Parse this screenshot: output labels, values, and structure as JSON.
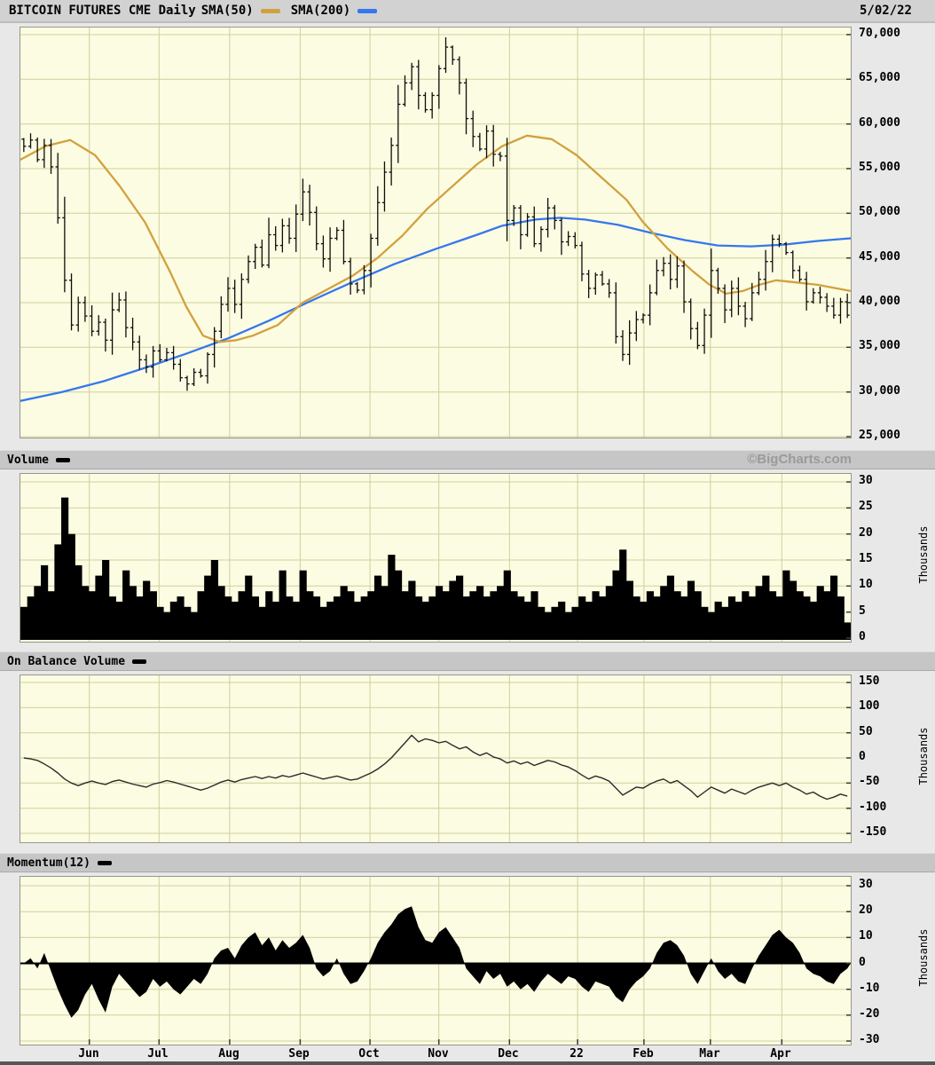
{
  "titlebar": {
    "title": "BITCOIN FUTURES CME Daily",
    "sma50_label": "SMA(50)",
    "sma200_label": "SMA(200)",
    "date": "5/02/22"
  },
  "sections": {
    "volume_label": "Volume",
    "obv_label": "On Balance Volume",
    "momentum_label": "Momentum(12)",
    "watermark": "©BigCharts.com"
  },
  "colors": {
    "sma50": "#d1a13f",
    "sma200": "#3577ee",
    "bars": "#0d0d0d",
    "plot_bg": "#fcfce2",
    "grid": "#cfcf9e",
    "titlebar_bg": "#d2d2d2",
    "header_bg": "#c6c6c6",
    "page_bg": "#e8e8e8",
    "watermark_text": "#9a9a9a"
  },
  "axes": {
    "months": {
      "labels": [
        "Jun",
        "Jul",
        "Aug",
        "Sep",
        "Oct",
        "Nov",
        "Dec",
        "22",
        "Feb",
        "Mar",
        "Apr"
      ],
      "fracs": [
        0.083,
        0.167,
        0.252,
        0.337,
        0.421,
        0.504,
        0.589,
        0.671,
        0.751,
        0.831,
        0.917
      ]
    },
    "price_ticks": {
      "values": [
        70000,
        65000,
        60000,
        55000,
        50000,
        45000,
        40000,
        35000,
        30000,
        25000
      ],
      "labels": [
        "70,000",
        "65,000",
        "60,000",
        "55,000",
        "50,000",
        "45,000",
        "40,000",
        "35,000",
        "30,000",
        "25,000"
      ]
    },
    "volume_ticks": [
      30,
      25,
      20,
      15,
      10,
      5,
      0
    ],
    "obv_ticks": [
      150,
      100,
      50,
      0,
      -50,
      -100,
      -150
    ],
    "momentum_ticks": [
      30,
      20,
      10,
      0,
      -10,
      -20,
      -30
    ],
    "thousands_label": "Thousands"
  },
  "chart_data": [
    {
      "type": "bar",
      "subtype": "ohlc-daily",
      "title": "BITCOIN FUTURES CME Daily",
      "legend": [
        "SMA(50)",
        "SMA(200)"
      ],
      "ylim": [
        25000,
        70000
      ],
      "grid": true,
      "close_thousands": [
        57.5,
        58.2,
        56.0,
        57.6,
        55.2,
        49.5,
        42.5,
        37.5,
        40.0,
        38.5,
        36.8,
        37.8,
        35.8,
        39.2,
        40.3,
        37.2,
        35.6,
        33.6,
        32.8,
        34.6,
        33.6,
        34.4,
        33.1,
        31.6,
        30.9,
        32.2,
        31.8,
        34.2,
        36.8,
        39.8,
        41.6,
        39.8,
        42.6,
        44.6,
        46.2,
        44.2,
        47.6,
        46.4,
        48.6,
        47.2,
        49.9,
        52.4,
        50.1,
        46.6,
        44.9,
        47.2,
        48.1,
        44.6,
        42.1,
        41.4,
        43.6,
        47.2,
        51.2,
        54.6,
        57.6,
        62.2,
        64.6,
        66.4,
        63.2,
        61.6,
        63.2,
        66.2,
        68.6,
        67.2,
        64.6,
        60.6,
        58.6,
        57.2,
        59.2,
        56.6,
        56.4,
        49.2,
        50.6,
        47.6,
        49.6,
        46.6,
        48.2,
        50.6,
        49.2,
        46.8,
        47.4,
        46.4,
        43.2,
        41.6,
        43.1,
        42.1,
        41.1,
        36.2,
        34.2,
        36.6,
        38.1,
        38.6,
        41.1,
        43.6,
        44.4,
        42.6,
        44.1,
        40.1,
        37.1,
        35.2,
        38.6,
        43.6,
        41.6,
        39.2,
        41.6,
        39.6,
        38.2,
        41.1,
        42.6,
        44.6,
        47.1,
        46.6,
        45.6,
        43.6,
        42.6,
        40.1,
        41.1,
        40.6,
        39.6,
        38.6,
        40.1,
        38.6
      ],
      "sma50_anchors": [
        [
          0,
          56.0
        ],
        [
          0.03,
          57.5
        ],
        [
          0.06,
          58.2
        ],
        [
          0.09,
          56.5
        ],
        [
          0.12,
          53.0
        ],
        [
          0.15,
          49.0
        ],
        [
          0.18,
          43.5
        ],
        [
          0.2,
          39.5
        ],
        [
          0.22,
          36.3
        ],
        [
          0.24,
          35.6
        ],
        [
          0.26,
          35.8
        ],
        [
          0.28,
          36.3
        ],
        [
          0.31,
          37.5
        ],
        [
          0.34,
          40.0
        ],
        [
          0.37,
          41.5
        ],
        [
          0.4,
          43.0
        ],
        [
          0.43,
          45.0
        ],
        [
          0.46,
          47.5
        ],
        [
          0.49,
          50.5
        ],
        [
          0.52,
          53.0
        ],
        [
          0.55,
          55.5
        ],
        [
          0.58,
          57.5
        ],
        [
          0.61,
          58.7
        ],
        [
          0.64,
          58.3
        ],
        [
          0.67,
          56.5
        ],
        [
          0.7,
          54.0
        ],
        [
          0.73,
          51.5
        ],
        [
          0.75,
          49.0
        ],
        [
          0.78,
          46.0
        ],
        [
          0.81,
          43.5
        ],
        [
          0.83,
          42.0
        ],
        [
          0.85,
          41.0
        ],
        [
          0.87,
          41.3
        ],
        [
          0.89,
          42.0
        ],
        [
          0.91,
          42.5
        ],
        [
          0.93,
          42.3
        ],
        [
          0.96,
          42.0
        ],
        [
          1.0,
          41.3
        ]
      ],
      "sma200_anchors": [
        [
          0,
          29.0
        ],
        [
          0.05,
          30.0
        ],
        [
          0.1,
          31.2
        ],
        [
          0.15,
          32.7
        ],
        [
          0.2,
          34.3
        ],
        [
          0.25,
          36.0
        ],
        [
          0.3,
          38.0
        ],
        [
          0.35,
          40.2
        ],
        [
          0.4,
          42.3
        ],
        [
          0.45,
          44.3
        ],
        [
          0.5,
          46.0
        ],
        [
          0.55,
          47.6
        ],
        [
          0.58,
          48.6
        ],
        [
          0.62,
          49.3
        ],
        [
          0.65,
          49.5
        ],
        [
          0.68,
          49.3
        ],
        [
          0.72,
          48.7
        ],
        [
          0.76,
          47.8
        ],
        [
          0.8,
          47.0
        ],
        [
          0.84,
          46.4
        ],
        [
          0.88,
          46.3
        ],
        [
          0.92,
          46.5
        ],
        [
          0.96,
          46.9
        ],
        [
          1.0,
          47.2
        ]
      ]
    },
    {
      "type": "bar",
      "title": "Volume",
      "unit": "Thousands",
      "ylim": [
        0,
        30
      ],
      "values": [
        6,
        8,
        10,
        14,
        9,
        18,
        27,
        20,
        14,
        10,
        9,
        12,
        15,
        8,
        7,
        13,
        10,
        8,
        11,
        9,
        6,
        5,
        7,
        8,
        6,
        5,
        9,
        12,
        15,
        10,
        8,
        7,
        9,
        12,
        8,
        6,
        9,
        7,
        13,
        8,
        7,
        13,
        9,
        8,
        6,
        7,
        8,
        10,
        9,
        7,
        8,
        9,
        12,
        10,
        16,
        13,
        9,
        11,
        8,
        7,
        8,
        10,
        9,
        11,
        12,
        8,
        9,
        10,
        8,
        9,
        10,
        13,
        9,
        8,
        7,
        9,
        6,
        5,
        6,
        7,
        5,
        6,
        8,
        7,
        9,
        8,
        10,
        13,
        17,
        11,
        8,
        7,
        9,
        8,
        10,
        12,
        9,
        8,
        11,
        9,
        6,
        5,
        7,
        6,
        8,
        7,
        9,
        8,
        10,
        12,
        9,
        8,
        13,
        11,
        9,
        8,
        7,
        10,
        9,
        12,
        8,
        3
      ]
    },
    {
      "type": "line",
      "title": "On Balance Volume",
      "unit": "Thousands",
      "ylim": [
        -150,
        150
      ],
      "values": [
        0,
        -2,
        -5,
        -12,
        -20,
        -30,
        -42,
        -50,
        -55,
        -50,
        -46,
        -50,
        -53,
        -47,
        -44,
        -48,
        -52,
        -55,
        -58,
        -52,
        -49,
        -45,
        -48,
        -52,
        -56,
        -60,
        -64,
        -60,
        -54,
        -48,
        -44,
        -48,
        -43,
        -40,
        -37,
        -41,
        -37,
        -40,
        -35,
        -38,
        -34,
        -30,
        -34,
        -38,
        -42,
        -39,
        -36,
        -40,
        -44,
        -42,
        -36,
        -30,
        -22,
        -12,
        0,
        15,
        30,
        45,
        32,
        38,
        35,
        30,
        33,
        25,
        18,
        22,
        12,
        5,
        10,
        2,
        -2,
        -10,
        -6,
        -12,
        -8,
        -15,
        -10,
        -5,
        -8,
        -14,
        -18,
        -25,
        -34,
        -42,
        -36,
        -40,
        -46,
        -60,
        -74,
        -66,
        -58,
        -60,
        -52,
        -46,
        -42,
        -50,
        -45,
        -55,
        -65,
        -78,
        -68,
        -58,
        -64,
        -70,
        -62,
        -67,
        -72,
        -64,
        -58,
        -54,
        -50,
        -55,
        -50,
        -58,
        -64,
        -72,
        -68,
        -76,
        -82,
        -78,
        -72,
        -76
      ]
    },
    {
      "type": "area",
      "title": "Momentum(12)",
      "unit": "Thousands",
      "ylim": [
        -30,
        30
      ],
      "values": [
        0,
        2,
        -2,
        4,
        -3,
        -10,
        -16,
        -21,
        -18,
        -12,
        -8,
        -14,
        -19,
        -9,
        -4,
        -7,
        -10,
        -13,
        -11,
        -6,
        -9,
        -7,
        -10,
        -12,
        -9,
        -6,
        -8,
        -4,
        2,
        5,
        6,
        2,
        7,
        10,
        12,
        7,
        10,
        5,
        9,
        6,
        8,
        11,
        6,
        -2,
        -5,
        -3,
        2,
        -4,
        -8,
        -7,
        -3,
        2,
        8,
        12,
        15,
        19,
        21,
        22,
        14,
        9,
        8,
        12,
        14,
        10,
        6,
        -2,
        -5,
        -8,
        -3,
        -6,
        -4,
        -9,
        -7,
        -10,
        -8,
        -11,
        -7,
        -4,
        -6,
        -8,
        -5,
        -6,
        -9,
        -11,
        -7,
        -8,
        -9,
        -13,
        -15,
        -10,
        -7,
        -5,
        -2,
        4,
        8,
        9,
        7,
        3,
        -4,
        -8,
        -3,
        2,
        -3,
        -6,
        -4,
        -7,
        -8,
        -2,
        3,
        7,
        11,
        13,
        10,
        8,
        4,
        -2,
        -4,
        -5,
        -7,
        -8,
        -4,
        -2
      ]
    }
  ]
}
